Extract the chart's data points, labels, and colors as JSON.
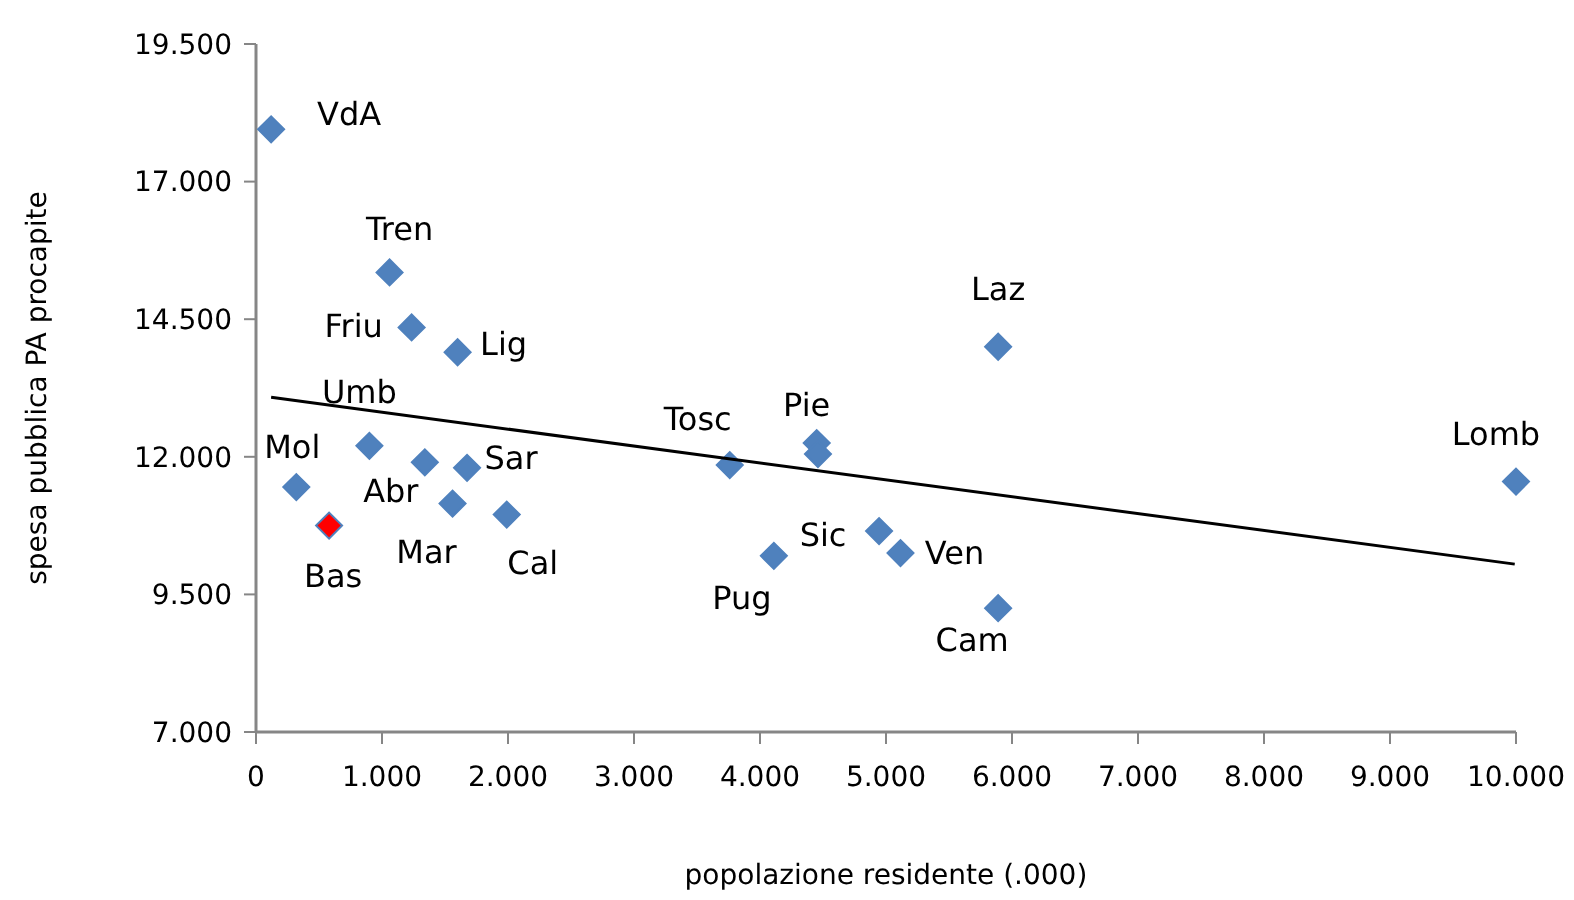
{
  "chart_data": {
    "type": "scatter",
    "xlabel": "popolazione residente (.000)",
    "ylabel": "spesa pubblica PA procapite",
    "marker": "diamond",
    "grid": false,
    "xlim": [
      0,
      10000
    ],
    "ylim": [
      7000,
      19500
    ],
    "xticks": [
      0,
      {
        "value": 1000,
        "label": "1.000"
      },
      {
        "value": 2000,
        "label": "2.000"
      },
      {
        "value": 3000,
        "label": "3.000"
      },
      {
        "value": 4000,
        "label": "4.000"
      },
      {
        "value": 5000,
        "label": "5.000"
      },
      {
        "value": 6000,
        "label": "6.000"
      },
      {
        "value": 7000,
        "label": "7.000"
      },
      {
        "value": 8000,
        "label": "8.000"
      },
      {
        "value": 9000,
        "label": "9.000"
      },
      {
        "value": 10000,
        "label": "10.000"
      }
    ],
    "yticks": [
      {
        "value": 7000,
        "label": "7.000"
      },
      {
        "value": 9500,
        "label": "9.500"
      },
      {
        "value": 12000,
        "label": "12.000"
      },
      {
        "value": 14500,
        "label": "14.500"
      },
      {
        "value": 17000,
        "label": "17.000"
      },
      {
        "value": 19500,
        "label": "19.500"
      }
    ],
    "series": [
      {
        "color": "#4f81bd",
        "x": [
          120,
          1060,
          1235,
          1600,
          900,
          320,
          1340,
          1675,
          1560,
          1990,
          580,
          3760,
          4450,
          4460,
          4110,
          4945,
          5115,
          5890,
          5890,
          10000
        ],
        "values": [
          17950,
          15350,
          14350,
          13900,
          12200,
          11450,
          11900,
          11800,
          11150,
          10950,
          10750,
          11850,
          12250,
          12050,
          10200,
          10650,
          10250,
          14000,
          9250,
          11550
        ],
        "colors": [
          "#4f81bd",
          "#4f81bd",
          "#4f81bd",
          "#4f81bd",
          "#4f81bd",
          "#4f81bd",
          "#4f81bd",
          "#4f81bd",
          "#4f81bd",
          "#4f81bd",
          "#ff0000",
          "#4f81bd",
          "#4f81bd",
          "#4f81bd",
          "#4f81bd",
          "#4f81bd",
          "#4f81bd",
          "#4f81bd",
          "#4f81bd",
          "#4f81bd"
        ]
      },
      {
        "type": "line",
        "color": "#000000",
        "marker": "none",
        "x": [
          120,
          9990
        ],
        "values": [
          13080,
          10050
        ]
      }
    ],
    "annotations": [
      {
        "text": "VdA",
        "x": 120,
        "y": 17950
      },
      {
        "text": "Tren",
        "x": 1060,
        "y": 15350
      },
      {
        "text": "Friu",
        "x": 1235,
        "y": 14350
      },
      {
        "text": "Lig",
        "x": 1600,
        "y": 13900
      },
      {
        "text": "Umb",
        "x": 900,
        "y": 12200
      },
      {
        "text": "Mol",
        "x": 320,
        "y": 11450
      },
      {
        "text": "Abr",
        "x": 1340,
        "y": 11900
      },
      {
        "text": "Sar",
        "x": 1675,
        "y": 11800
      },
      {
        "text": "Mar",
        "x": 1560,
        "y": 11150
      },
      {
        "text": "Cal",
        "x": 1990,
        "y": 10950
      },
      {
        "text": "Bas",
        "x": 580,
        "y": 10750
      },
      {
        "text": "Tosc",
        "x": 3760,
        "y": 11850
      },
      {
        "text": "Pie",
        "x": 4450,
        "y": 12250
      },
      {
        "text": "Pug",
        "x": 4110,
        "y": 10200
      },
      {
        "text": "Sic",
        "x": 4945,
        "y": 10650
      },
      {
        "text": "Ven",
        "x": 5115,
        "y": 10250
      },
      {
        "text": "Laz",
        "x": 5890,
        "y": 14000
      },
      {
        "text": "Cam",
        "x": 5890,
        "y": 9250
      },
      {
        "text": "Lomb",
        "x": 10000,
        "y": 11550
      }
    ]
  }
}
